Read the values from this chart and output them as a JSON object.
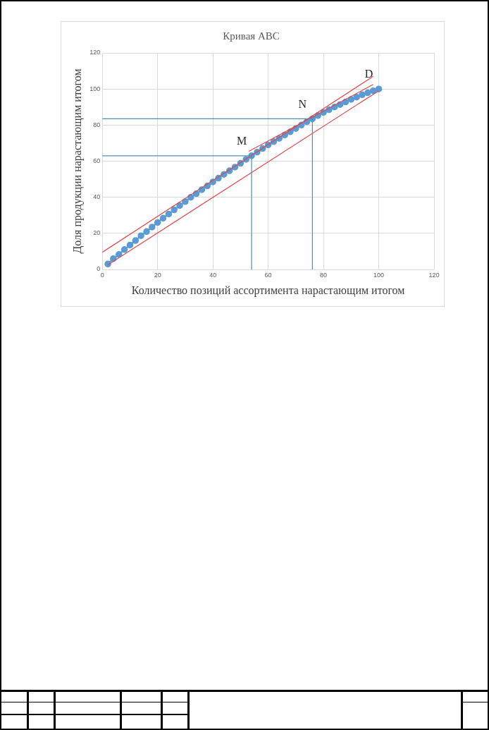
{
  "chart_data": {
    "type": "line",
    "title": "Кривая ABC",
    "xlabel": "Количество позиций ассортимента нарастающим итогом",
    "ylabel": "Доля продукции нарастающим итогом",
    "xlim": [
      0,
      120
    ],
    "xticks": [
      0,
      20,
      40,
      60,
      80,
      100,
      120
    ],
    "ylim": [
      0,
      120
    ],
    "yticks": [
      0,
      20,
      40,
      60,
      80,
      100,
      120
    ],
    "grid": true,
    "legend": false,
    "series": [
      {
        "color": "#5b9bd5",
        "marker": "circle",
        "x": [
          2,
          4,
          6,
          8,
          10,
          12,
          14,
          16,
          18,
          20,
          22,
          24,
          26,
          28,
          30,
          32,
          34,
          36,
          38,
          40,
          42,
          44,
          46,
          48,
          50,
          52,
          54,
          56,
          58,
          60,
          62,
          64,
          66,
          68,
          70,
          72,
          74,
          76,
          78,
          80,
          82,
          84,
          86,
          88,
          90,
          92,
          94,
          96,
          98,
          100
        ],
        "values": [
          3,
          6,
          8.3,
          11,
          13.5,
          16,
          18.7,
          21,
          23.5,
          26,
          28.4,
          30.7,
          33,
          35.4,
          37.6,
          40,
          42,
          44.2,
          46.3,
          48.5,
          50.6,
          52.7,
          54.7,
          56.7,
          58.8,
          61,
          63,
          65,
          67,
          69,
          70.8,
          72.6,
          74.5,
          76.3,
          78.1,
          80,
          81.8,
          83.5,
          85.3,
          87,
          88.5,
          90,
          91.4,
          92.8,
          94.2,
          95.5,
          96.8,
          97.9,
          99,
          100
        ]
      },
      {
        "color": "#e0464a",
        "marker": "none",
        "x": [
          0,
          98
        ],
        "values": [
          9.5,
          107
        ]
      },
      {
        "color": "#e0464a",
        "marker": "none",
        "x": [
          53,
          98
        ],
        "values": [
          65.5,
          102.5
        ]
      },
      {
        "color": "#e0464a",
        "marker": "none",
        "x": [
          2,
          100
        ],
        "values": [
          2.5,
          99
        ]
      },
      {
        "color": "#4a90b8",
        "marker": "none",
        "x": [
          0,
          54,
          54
        ],
        "values": [
          63,
          63,
          0
        ]
      },
      {
        "color": "#4a90b8",
        "marker": "none",
        "x": [
          0,
          76,
          76
        ],
        "values": [
          83.5,
          83.5,
          0
        ]
      }
    ],
    "annotations": [
      {
        "text": "M",
        "x": 54,
        "y": 63
      },
      {
        "text": "N",
        "x": 76,
        "y": 83.5
      },
      {
        "text": "D",
        "x": 100,
        "y": 100
      }
    ]
  }
}
